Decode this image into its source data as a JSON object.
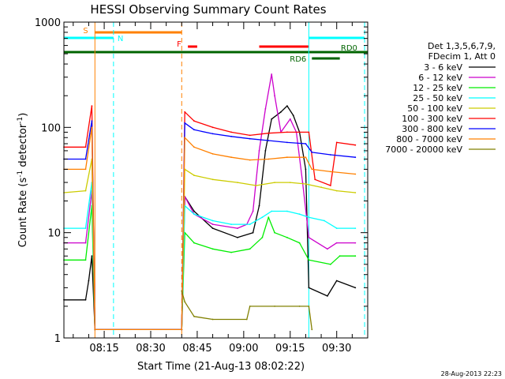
{
  "chart_data": {
    "type": "line",
    "title": "HESSI Observing Summary Count Rates",
    "xlabel": "Start Time (21-Aug-13 08:02:22)",
    "ylabel": "Count Rate (s",
    "ylabel_sup": "-1",
    "ylabel_tail": " detector",
    "ylabel_end": ")",
    "y_scale": "log",
    "ylim": [
      1,
      1000
    ],
    "xlim": [
      "08:02",
      "09:40"
    ],
    "x_ticks": [
      "08:15",
      "08:30",
      "08:45",
      "09:00",
      "09:15",
      "09:30"
    ],
    "y_ticks": [
      "1",
      "10",
      "100",
      "1000"
    ],
    "timestamp": "28-Aug-2013 22:23",
    "legend_header": [
      "Det 1,3,5,6,7,9,",
      "FDecim 1, Att 0"
    ],
    "legend_position": "right",
    "series": [
      {
        "name": "3 - 6 keV",
        "color": "#000000",
        "points": [
          [
            "08:02",
            2.3
          ],
          [
            "08:09",
            2.3
          ],
          [
            "08:10",
            3.5
          ],
          [
            "08:11",
            6
          ],
          [
            "08:12",
            1.2
          ],
          [
            "08:40",
            1.2
          ],
          [
            "08:41",
            22
          ],
          [
            "08:44",
            16
          ],
          [
            "08:50",
            11
          ],
          [
            "08:58",
            9
          ],
          [
            "09:03",
            10
          ],
          [
            "09:05",
            18
          ],
          [
            "09:07",
            60
          ],
          [
            "09:09",
            120
          ],
          [
            "09:12",
            140
          ],
          [
            "09:14",
            160
          ],
          [
            "09:16",
            130
          ],
          [
            "09:18",
            90
          ],
          [
            "09:20",
            40
          ],
          [
            "09:21",
            3
          ],
          [
            "09:27",
            2.5
          ],
          [
            "09:30",
            3.5
          ],
          [
            "09:36",
            3
          ]
        ]
      },
      {
        "name": "6 - 12 keV",
        "color": "#cc00cc",
        "points": [
          [
            "08:02",
            8
          ],
          [
            "08:09",
            8
          ],
          [
            "08:11",
            25
          ],
          [
            "08:12",
            1.2
          ],
          [
            "08:40",
            1.2
          ],
          [
            "08:41",
            22
          ],
          [
            "08:44",
            15
          ],
          [
            "08:50",
            12
          ],
          [
            "08:58",
            11
          ],
          [
            "09:01",
            12
          ],
          [
            "09:03",
            16
          ],
          [
            "09:05",
            60
          ],
          [
            "09:07",
            150
          ],
          [
            "09:09",
            320
          ],
          [
            "09:10",
            200
          ],
          [
            "09:12",
            90
          ],
          [
            "09:15",
            120
          ],
          [
            "09:17",
            90
          ],
          [
            "09:19",
            30
          ],
          [
            "09:21",
            9
          ],
          [
            "09:27",
            7
          ],
          [
            "09:30",
            8
          ],
          [
            "09:36",
            8
          ]
        ]
      },
      {
        "name": "12 - 25 keV",
        "color": "#00ee00",
        "points": [
          [
            "08:02",
            5.5
          ],
          [
            "08:09",
            5.5
          ],
          [
            "08:11",
            18
          ],
          [
            "08:12",
            1.2
          ],
          [
            "08:40",
            1.2
          ],
          [
            "08:41",
            10
          ],
          [
            "08:44",
            8
          ],
          [
            "08:50",
            7
          ],
          [
            "08:56",
            6.5
          ],
          [
            "09:02",
            7
          ],
          [
            "09:06",
            9
          ],
          [
            "09:08",
            14
          ],
          [
            "09:10",
            10
          ],
          [
            "09:14",
            9
          ],
          [
            "09:18",
            8
          ],
          [
            "09:21",
            5.5
          ],
          [
            "09:28",
            5
          ],
          [
            "09:31",
            6
          ],
          [
            "09:36",
            6
          ]
        ]
      },
      {
        "name": "25 - 50 keV",
        "color": "#00ffff",
        "points": [
          [
            "08:02",
            11
          ],
          [
            "08:09",
            11
          ],
          [
            "08:11",
            30
          ],
          [
            "08:12",
            1.2
          ],
          [
            "08:40",
            1.2
          ],
          [
            "08:41",
            18
          ],
          [
            "08:44",
            15
          ],
          [
            "08:50",
            13
          ],
          [
            "08:56",
            12
          ],
          [
            "09:02",
            12
          ],
          [
            "09:06",
            14
          ],
          [
            "09:09",
            16
          ],
          [
            "09:14",
            16
          ],
          [
            "09:18",
            15
          ],
          [
            "09:21",
            14
          ],
          [
            "09:26",
            13
          ],
          [
            "09:30",
            11
          ],
          [
            "09:36",
            11
          ]
        ]
      },
      {
        "name": "50 - 100 keV",
        "color": "#cccc00",
        "points": [
          [
            "08:02",
            24
          ],
          [
            "08:09",
            25
          ],
          [
            "08:11",
            50
          ],
          [
            "08:12",
            1.2
          ],
          [
            "08:40",
            1.2
          ],
          [
            "08:41",
            40
          ],
          [
            "08:44",
            35
          ],
          [
            "08:50",
            32
          ],
          [
            "08:58",
            30
          ],
          [
            "09:04",
            28
          ],
          [
            "09:10",
            30
          ],
          [
            "09:15",
            30
          ],
          [
            "09:20",
            29
          ],
          [
            "09:25",
            27
          ],
          [
            "09:30",
            25
          ],
          [
            "09:36",
            24
          ]
        ]
      },
      {
        "name": "100 - 300 keV",
        "color": "#ff0000",
        "points": [
          [
            "08:02",
            65
          ],
          [
            "08:09",
            65
          ],
          [
            "08:11",
            160
          ],
          [
            "08:12",
            1.2
          ],
          [
            "08:40",
            1.2
          ],
          [
            "08:41",
            140
          ],
          [
            "08:44",
            115
          ],
          [
            "08:50",
            100
          ],
          [
            "08:56",
            90
          ],
          [
            "09:02",
            84
          ],
          [
            "09:08",
            88
          ],
          [
            "09:14",
            90
          ],
          [
            "09:21",
            90
          ],
          [
            "09:23",
            32
          ],
          [
            "09:28",
            28
          ],
          [
            "09:30",
            72
          ],
          [
            "09:36",
            68
          ]
        ]
      },
      {
        "name": "300 - 800 keV",
        "color": "#0000ff",
        "points": [
          [
            "08:02",
            50
          ],
          [
            "08:09",
            50
          ],
          [
            "08:11",
            115
          ],
          [
            "08:12",
            1.2
          ],
          [
            "08:40",
            1.2
          ],
          [
            "08:41",
            110
          ],
          [
            "08:44",
            95
          ],
          [
            "08:50",
            87
          ],
          [
            "08:56",
            82
          ],
          [
            "09:02",
            78
          ],
          [
            "09:08",
            75
          ],
          [
            "09:14",
            72
          ],
          [
            "09:20",
            70
          ],
          [
            "09:22",
            58
          ],
          [
            "09:28",
            55
          ],
          [
            "09:36",
            52
          ]
        ]
      },
      {
        "name": "800 - 7000 keV",
        "color": "#ff8000",
        "points": [
          [
            "08:02",
            40
          ],
          [
            "08:09",
            40
          ],
          [
            "08:11",
            100
          ],
          [
            "08:12",
            1.2
          ],
          [
            "08:40",
            1.2
          ],
          [
            "08:41",
            80
          ],
          [
            "08:44",
            65
          ],
          [
            "08:50",
            56
          ],
          [
            "08:56",
            52
          ],
          [
            "09:02",
            49
          ],
          [
            "09:08",
            50
          ],
          [
            "09:14",
            52
          ],
          [
            "09:20",
            52
          ],
          [
            "09:22",
            40
          ],
          [
            "09:28",
            38
          ],
          [
            "09:36",
            36
          ]
        ]
      },
      {
        "name": "7000 - 20000 keV",
        "color": "#808000",
        "points": [
          [
            "08:40",
            2.8
          ],
          [
            "08:41",
            2.2
          ],
          [
            "08:44",
            1.6
          ],
          [
            "08:50",
            1.5
          ],
          [
            "09:01",
            1.5
          ],
          [
            "09:02",
            2.0
          ],
          [
            "09:10",
            2.0
          ],
          [
            "09:18",
            2.0
          ],
          [
            "09:21",
            2.0
          ],
          [
            "09:22",
            1.2
          ]
        ]
      }
    ],
    "vlines": [
      {
        "t": "08:02",
        "color": "#00ffff",
        "dash": false
      },
      {
        "t": "08:12",
        "color": "#ff8000",
        "dash": false
      },
      {
        "t": "08:18",
        "color": "#00ffff",
        "dash": true
      },
      {
        "t": "08:40",
        "color": "#ff8000",
        "dash": true
      },
      {
        "t": "09:21",
        "color": "#00ffff",
        "dash": false
      },
      {
        "t": "09:39",
        "color": "#00ffff",
        "dash": true
      }
    ],
    "bars": [
      {
        "label": "S",
        "color": "#ff8000",
        "t0": "08:12",
        "t1": "08:40",
        "y": 41,
        "label_pos": "start"
      },
      {
        "label": "N",
        "color": "#00ffff",
        "t0": "08:02",
        "t1": "08:18",
        "y": 48,
        "label_pos": "end"
      },
      {
        "label": "",
        "color": "#00ffff",
        "t0": "09:21",
        "t1": "09:39",
        "y": 48,
        "label_pos": "none"
      },
      {
        "label": "F",
        "color": "#ff0000",
        "t0": "08:42",
        "t1": "08:45",
        "y": 59,
        "label_pos": "start"
      },
      {
        "label": "",
        "color": "#ff0000",
        "t0": "09:05",
        "t1": "09:21",
        "y": 59,
        "label_pos": "none"
      },
      {
        "label": "",
        "color": "#006400",
        "t0": "08:02",
        "t1": "09:40",
        "y": 66,
        "label_pos": "none"
      },
      {
        "label": "RD0",
        "color": "#006400",
        "t0": "09:29",
        "t1": "09:39",
        "y": 66,
        "label_pos": "above"
      },
      {
        "label": "RD6",
        "color": "#006400",
        "t0": "09:22",
        "t1": "09:31",
        "y": 74,
        "label_pos": "start"
      }
    ]
  }
}
